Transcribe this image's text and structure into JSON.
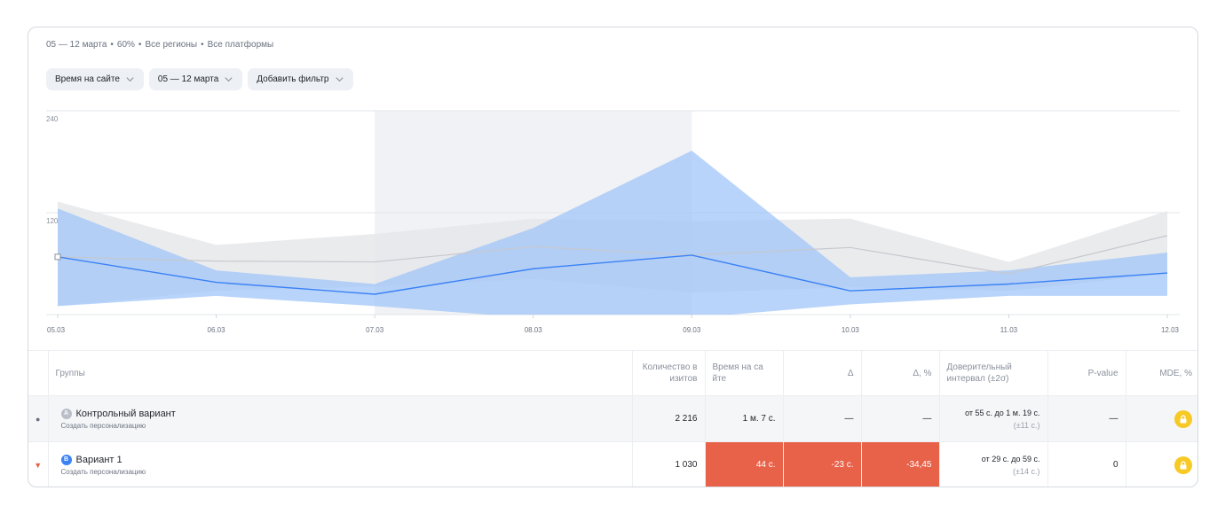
{
  "summary": {
    "period": "05 — 12 марта",
    "percent": "60%",
    "regions": "Все регионы",
    "platforms": "Все платформы",
    "separator": "•"
  },
  "filters": [
    {
      "label": "Время на сайте",
      "icon": "chevron-down-icon"
    },
    {
      "label": "05 — 12 марта",
      "icon": "chevron-down-icon"
    },
    {
      "label": "Добавить фильтр",
      "icon": "chevron-down-icon"
    }
  ],
  "chart_data": {
    "type": "line",
    "x": [
      "05.03",
      "06.03",
      "07.03",
      "08.03",
      "09.03",
      "10.03",
      "11.03",
      "12.03"
    ],
    "y_ticks": [
      "240",
      "120"
    ],
    "ylim": [
      0,
      240
    ],
    "highlight_range": [
      "07.03",
      "09.03"
    ],
    "series": [
      {
        "values": [
          68,
          38,
          24,
          54,
          70,
          28,
          36,
          49
        ],
        "lower": [
          10,
          22,
          10,
          -4,
          -4,
          12,
          22,
          22
        ],
        "upper": [
          125,
          52,
          36,
          102,
          193,
          44,
          52,
          73
        ],
        "color": "#3b82f6",
        "band_color": "#9ec3f8"
      },
      {
        "values": [
          68,
          63,
          62,
          80,
          70,
          79,
          48,
          93
        ],
        "lower": [
          10,
          28,
          33,
          42,
          26,
          32,
          28,
          48
        ],
        "upper": [
          133,
          82,
          95,
          113,
          110,
          113,
          62,
          122
        ],
        "color": "#c6c8cf",
        "band_color": "#e6e7ea"
      }
    ]
  },
  "table": {
    "headers": {
      "groups": "Группы",
      "visits": "Количество в изитов",
      "time": "Время на са йте",
      "delta": "Δ",
      "delta_pct": "Δ, %",
      "ci_line1": "Доверительный",
      "ci_line2": "интервал (±2σ)",
      "pvalue": "P-value",
      "mde": "MDE, %"
    },
    "rows": [
      {
        "marker": "●",
        "badge": "A",
        "badge_color": "#b9bec8",
        "name": "Контрольный вариант",
        "action": "Создать персонализацию",
        "visits": "2 216",
        "time": "1 м. 7 с.",
        "delta": "—",
        "delta_pct": "—",
        "ci": "от 55 с. до 1 м. 19 с.",
        "ci_sub": "(±11 с.)",
        "pvalue": "—",
        "mde_icon": "lock-icon"
      },
      {
        "marker": "▼",
        "marker_color": "#e8624a",
        "badge": "B",
        "badge_color": "#3b82f6",
        "name": "Вариант 1",
        "action": "Создать персонализацию",
        "visits": "1 030",
        "time": "44 с.",
        "delta": "-23 с.",
        "delta_pct": "-34,45",
        "ci": "от 29 с. до 59 с.",
        "ci_sub": "(±14 с.)",
        "pvalue": "0",
        "mde_icon": "lock-icon",
        "highlight_color": "#e8624a"
      }
    ]
  }
}
